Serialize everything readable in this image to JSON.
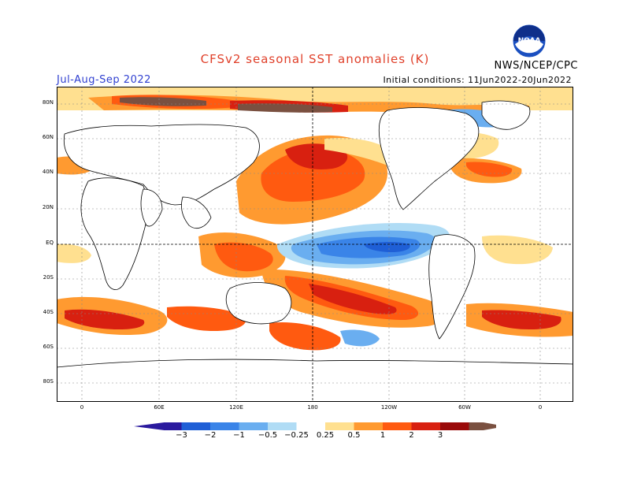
{
  "title": "CFSv2 seasonal SST anomalies (K)",
  "period": "Jul-Aug-Sep 2022",
  "initial_conditions": "Initial conditions: 11Jun2022-20Jun2022",
  "agency": "NWS/NCEP/CPC",
  "logo": {
    "icon": "noaa-logo-icon",
    "text": "NOAA"
  },
  "lat_labels": [
    "80N",
    "60N",
    "40N",
    "20N",
    "EQ",
    "20S",
    "40S",
    "60S",
    "80S"
  ],
  "lon_labels": [
    "0",
    "60E",
    "120E",
    "180",
    "120W",
    "60W",
    "0"
  ],
  "colorbar": {
    "labels": [
      "−3",
      "−2",
      "−1",
      "−0.5",
      "−0.25",
      "0.25",
      "0.5",
      "1",
      "2",
      "3"
    ],
    "colors": [
      "#2a1a9e",
      "#1f5fd6",
      "#3a84e8",
      "#6aaef0",
      "#b0dcf5",
      "#ffffff",
      "#ffe090",
      "#ff9a30",
      "#ff5a10",
      "#d82010",
      "#9a0a0a",
      "#7a5040"
    ]
  }
}
